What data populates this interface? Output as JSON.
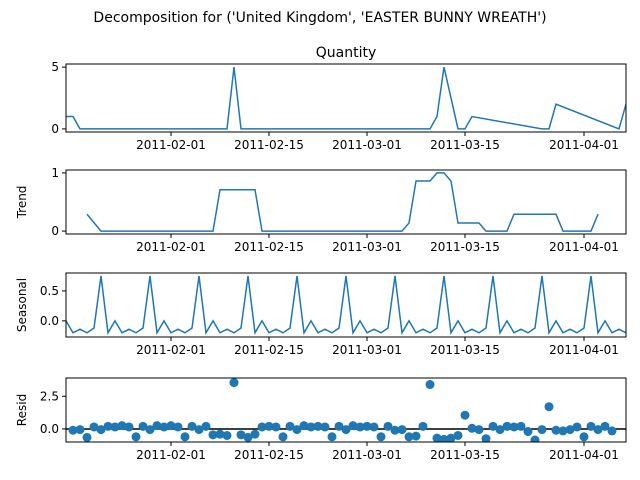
{
  "title": "Decomposition for ('United Kingdom', 'EASTER BUNNY WREATH')",
  "chart_data": [
    {
      "type": "line",
      "title": "Quantity",
      "ylabel": "",
      "x_start": "2011-01-17",
      "x_end": "2011-04-07",
      "x_ticks": [
        "2011-02-01",
        "2011-02-15",
        "2011-03-01",
        "2011-03-15",
        "2011-04-01"
      ],
      "ylim": [
        -0.25,
        5.25
      ],
      "y_ticks": [
        0,
        5
      ],
      "color": "#1f77b4",
      "series": [
        {
          "x": [
            "2011-01-17",
            "2011-01-18",
            "2011-01-19",
            "2011-02-09",
            "2011-02-10",
            "2011-02-11",
            "2011-03-10",
            "2011-03-11",
            "2011-03-12",
            "2011-03-14",
            "2011-03-15",
            "2011-03-16",
            "2011-03-26",
            "2011-03-27",
            "2011-03-28",
            "2011-04-06",
            "2011-04-07"
          ],
          "y": [
            1,
            1,
            0,
            0,
            5,
            0,
            0,
            1,
            5,
            0,
            0,
            1,
            0,
            0,
            2,
            0,
            2
          ]
        }
      ]
    },
    {
      "type": "line",
      "title": "",
      "ylabel": "Trend",
      "x_start": "2011-01-17",
      "x_end": "2011-04-07",
      "x_ticks": [
        "2011-02-01",
        "2011-02-15",
        "2011-03-01",
        "2011-03-15",
        "2011-04-01"
      ],
      "ylim": [
        -0.05,
        1.05
      ],
      "y_ticks": [
        0,
        1
      ],
      "color": "#1f77b4",
      "series": [
        {
          "x": [
            "2011-01-20",
            "2011-01-22",
            "2011-02-07",
            "2011-02-08",
            "2011-02-13",
            "2011-02-14",
            "2011-03-06",
            "2011-03-07",
            "2011-03-08",
            "2011-03-10",
            "2011-03-11",
            "2011-03-12",
            "2011-03-13",
            "2011-03-14",
            "2011-03-17",
            "2011-03-18",
            "2011-03-21",
            "2011-03-22",
            "2011-03-28",
            "2011-03-29",
            "2011-04-02",
            "2011-04-03"
          ],
          "y": [
            0.29,
            0,
            0,
            0.71,
            0.71,
            0,
            0,
            0.14,
            0.86,
            0.86,
            1,
            1,
            0.86,
            0.14,
            0.14,
            0,
            0,
            0.29,
            0.29,
            0,
            0,
            0.29
          ]
        }
      ]
    },
    {
      "type": "line",
      "title": "",
      "ylabel": "Seasonal",
      "x_start": "2011-01-17",
      "x_end": "2011-04-07",
      "x_ticks": [
        "2011-02-01",
        "2011-02-15",
        "2011-03-01",
        "2011-03-15",
        "2011-04-01"
      ],
      "ylim": [
        -0.27,
        0.8
      ],
      "y_ticks": [
        0.0,
        0.5
      ],
      "color": "#1f77b4",
      "pattern": [
        -0.2,
        -0.14,
        -0.2,
        -0.12,
        0.75,
        -0.2,
        0.0
      ],
      "pattern_start": "2011-01-18",
      "series": []
    },
    {
      "type": "scatter",
      "title": "",
      "ylabel": "Resid",
      "x_start": "2011-01-17",
      "x_end": "2011-04-07",
      "x_ticks": [
        "2011-02-01",
        "2011-02-15",
        "2011-03-01",
        "2011-03-15",
        "2011-04-01"
      ],
      "ylim": [
        -1.0,
        3.9
      ],
      "y_ticks": [
        0.0,
        2.5
      ],
      "color": "#1f77b4",
      "baseline": 0,
      "series": [
        {
          "y": [
            -0.1,
            -0.05,
            -0.65,
            0.15,
            -0.05,
            0.2,
            0.15,
            0.25,
            0.15,
            -0.6,
            0.2,
            -0.05,
            0.25,
            0.15,
            0.25,
            0.15,
            -0.6,
            0.2,
            -0.05,
            0.2,
            -0.45,
            -0.4,
            -0.5,
            3.55,
            -0.45,
            -0.65,
            -0.4,
            0.15,
            0.2,
            0.15,
            -0.6,
            0.2,
            -0.05,
            0.25,
            0.15,
            0.2,
            0.15,
            -0.6,
            0.2,
            -0.05,
            0.25,
            0.15,
            0.2,
            0.15,
            -0.6,
            0.2,
            -0.1,
            -0.05,
            -0.6,
            -0.55,
            0.2,
            3.4,
            -0.7,
            -0.8,
            -0.7,
            -0.5,
            1.05,
            0.05,
            -0.05,
            -0.75,
            0.2,
            -0.05,
            0.2,
            0.15,
            0.2,
            -0.2,
            -0.85,
            -0.05,
            1.7,
            -0.1,
            -0.15,
            -0.05,
            0.15,
            -0.6,
            0.2,
            -0.05,
            0.2,
            -0.15
          ]
        }
      ]
    }
  ]
}
